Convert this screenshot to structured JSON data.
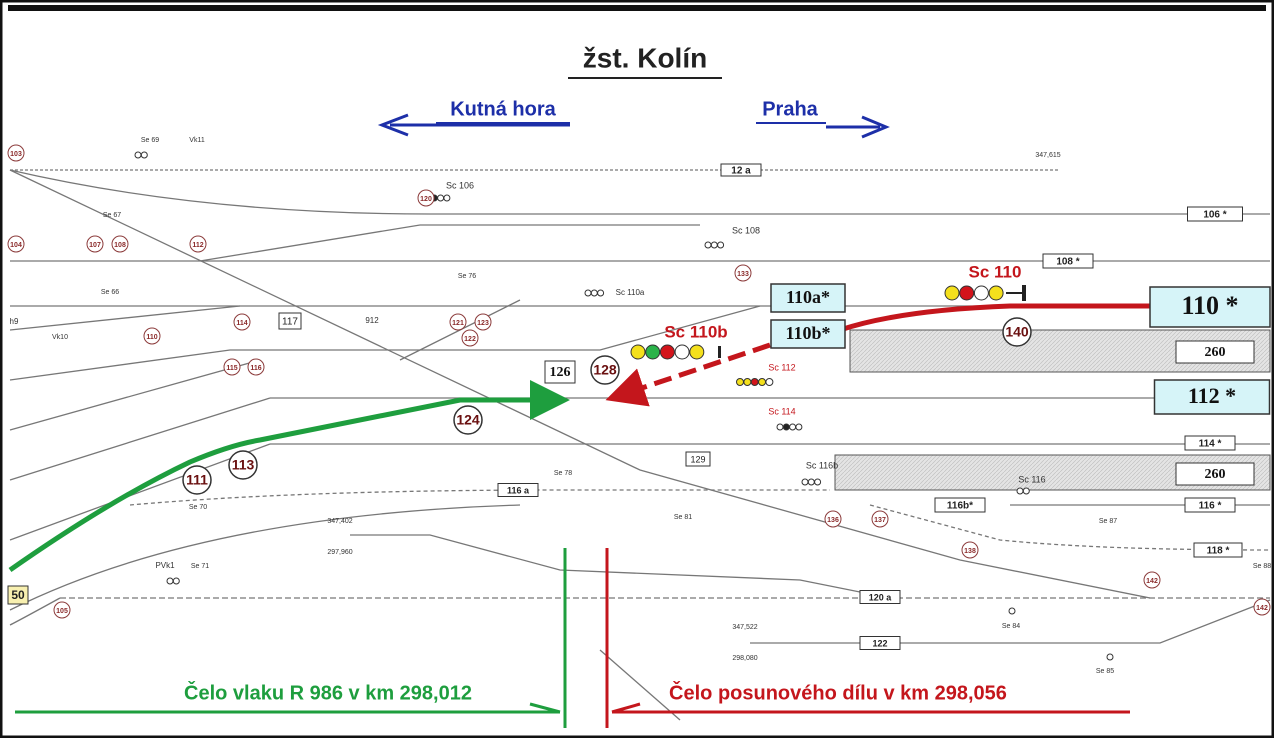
{
  "title": "žst. Kolín",
  "directions": [
    "Kutná hora",
    "Praha"
  ],
  "track_boxes": [
    "12 a",
    "106 *",
    "108 *",
    "117",
    "110a*",
    "110b*",
    "110 *",
    "260",
    "126",
    "112 *",
    "114 *",
    "129",
    "260",
    "116 a",
    "116b*",
    "116 *",
    "118 *",
    "120 a",
    "122",
    "50"
  ],
  "signal_labels": [
    "Se 69",
    "Vk11",
    "Sc 106",
    "Se 67",
    "Sc 108",
    "Se 66",
    "Se 76",
    "Sc 110a",
    "912",
    "Vk10",
    "Sc 110",
    "Sc 110b",
    "Sc 112",
    "Sc 114",
    "Se 78",
    "Sc 116b",
    "Sc 116",
    "Se 70",
    "Se 81",
    "Se 87",
    "PVk1",
    "Se 71",
    "Se 84",
    "Se 85",
    "Se 88",
    "h9"
  ],
  "km_marks": [
    "347,615",
    "347,402",
    "297,960",
    "347,522",
    "298,080"
  ],
  "circles": [
    "103",
    "104",
    "107",
    "108",
    "112",
    "120",
    "133",
    "110",
    "114",
    "121",
    "123",
    "122",
    "115",
    "116",
    "140",
    "128",
    "124",
    "111",
    "113",
    "136",
    "137",
    "138",
    "142",
    "142",
    "105"
  ],
  "notes": [
    "Čelo vlaku R 986 v km 298,012",
    "Čelo posunového dílu v km  298,056"
  ]
}
